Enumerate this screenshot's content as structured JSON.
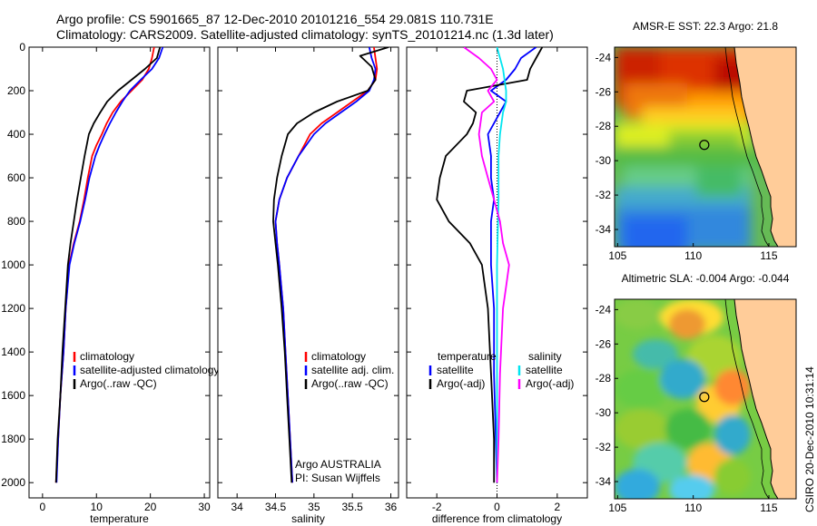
{
  "header": {
    "line1": "Argo profile: CS 5901665_87 12-Dec-2010 20101216_554 29.081S 110.731E",
    "line2": "Climatology: CARS2009. Satellite-adjusted climatology: synTS_20101214.nc (1.3d later)"
  },
  "side_text": "CSIRO 20-Dec-2010 10:31:14",
  "colors": {
    "red": "#ff0000",
    "blue": "#0000ff",
    "black": "#000000",
    "cyan": "#00e5f0",
    "magenta": "#ff00ff",
    "land": "#ffcc99"
  },
  "chart_data": [
    {
      "type": "line",
      "xlabel": "temperature",
      "xlim": [
        -2.5,
        31
      ],
      "ylim": [
        2070,
        0
      ],
      "xticks": [
        "0",
        "10",
        "20",
        "30"
      ],
      "xtickvals": [
        0,
        10,
        20,
        30
      ],
      "yticks": [
        "0",
        "200",
        "400",
        "600",
        "800",
        "1000",
        "1200",
        "1400",
        "1600",
        "1800",
        "2000"
      ],
      "legend": {
        "placement": "lower-middle",
        "entries": [
          "climatology",
          "satellite-adjusted climatology",
          "Argo(..raw -QC)"
        ]
      },
      "series": [
        {
          "name": "climatology",
          "color": "red",
          "points": [
            [
              20.7,
              0
            ],
            [
              20.3,
              50
            ],
            [
              19.7,
              100
            ],
            [
              18.5,
              150
            ],
            [
              16.5,
              200
            ],
            [
              14.5,
              250
            ],
            [
              13.0,
              300
            ],
            [
              11.9,
              350
            ],
            [
              11.0,
              400
            ],
            [
              10.0,
              450
            ],
            [
              9.2,
              500
            ],
            [
              8.4,
              600
            ],
            [
              7.7,
              700
            ],
            [
              6.9,
              800
            ],
            [
              5.8,
              900
            ],
            [
              4.9,
              1000
            ],
            [
              4.3,
              1200
            ],
            [
              3.9,
              1400
            ],
            [
              3.3,
              1600
            ],
            [
              2.9,
              1800
            ],
            [
              2.5,
              2000
            ]
          ]
        },
        {
          "name": "satellite-adjusted climatology",
          "color": "blue",
          "points": [
            [
              22.3,
              0
            ],
            [
              21.6,
              50
            ],
            [
              20.3,
              100
            ],
            [
              18.2,
              150
            ],
            [
              16.2,
              200
            ],
            [
              14.8,
              250
            ],
            [
              13.6,
              300
            ],
            [
              12.5,
              350
            ],
            [
              11.5,
              400
            ],
            [
              10.6,
              450
            ],
            [
              9.8,
              500
            ],
            [
              8.7,
              600
            ],
            [
              7.9,
              700
            ],
            [
              7.0,
              800
            ],
            [
              5.9,
              900
            ],
            [
              5.0,
              1000
            ],
            [
              4.3,
              1200
            ],
            [
              3.9,
              1400
            ],
            [
              3.3,
              1600
            ],
            [
              2.9,
              1800
            ],
            [
              2.6,
              2000
            ]
          ]
        },
        {
          "name": "Argo(..raw -QC)",
          "color": "black",
          "points": [
            [
              21.8,
              0
            ],
            [
              21.2,
              50
            ],
            [
              19.0,
              100
            ],
            [
              16.5,
              150
            ],
            [
              14.0,
              200
            ],
            [
              12.0,
              250
            ],
            [
              10.7,
              300
            ],
            [
              9.5,
              350
            ],
            [
              8.6,
              400
            ],
            [
              7.8,
              500
            ],
            [
              7.1,
              600
            ],
            [
              6.4,
              700
            ],
            [
              5.8,
              800
            ],
            [
              5.2,
              900
            ],
            [
              4.7,
              1000
            ],
            [
              4.2,
              1200
            ],
            [
              3.7,
              1400
            ],
            [
              3.3,
              1600
            ],
            [
              2.8,
              1800
            ],
            [
              2.5,
              2000
            ]
          ]
        }
      ]
    },
    {
      "type": "line",
      "xlabel": "salinity",
      "xlim": [
        33.75,
        36.1
      ],
      "ylim": [
        2070,
        0
      ],
      "xticks": [
        "34",
        "34.5",
        "35",
        "35.5",
        "36"
      ],
      "xtickvals": [
        34,
        34.5,
        35,
        35.5,
        36
      ],
      "legend": {
        "placement": "lower-right",
        "entries": [
          "climatology",
          "satellite adj. clim.",
          "Argo(..raw -QC)"
        ]
      },
      "annotations": [
        "Argo AUSTRALIA",
        "PI: Susan Wijffels"
      ],
      "series": [
        {
          "name": "climatology",
          "color": "red",
          "points": [
            [
              35.78,
              0
            ],
            [
              35.8,
              50
            ],
            [
              35.82,
              100
            ],
            [
              35.8,
              150
            ],
            [
              35.7,
              200
            ],
            [
              35.5,
              250
            ],
            [
              35.3,
              300
            ],
            [
              35.1,
              350
            ],
            [
              34.95,
              400
            ],
            [
              34.8,
              500
            ],
            [
              34.65,
              600
            ],
            [
              34.55,
              700
            ],
            [
              34.5,
              800
            ],
            [
              34.52,
              900
            ],
            [
              34.55,
              1000
            ],
            [
              34.6,
              1200
            ],
            [
              34.63,
              1400
            ],
            [
              34.66,
              1600
            ],
            [
              34.69,
              1800
            ],
            [
              34.72,
              2000
            ]
          ]
        },
        {
          "name": "satellite adj. clim.",
          "color": "blue",
          "points": [
            [
              35.72,
              0
            ],
            [
              35.75,
              50
            ],
            [
              35.8,
              100
            ],
            [
              35.78,
              150
            ],
            [
              35.72,
              200
            ],
            [
              35.55,
              250
            ],
            [
              35.35,
              300
            ],
            [
              35.15,
              350
            ],
            [
              35.0,
              400
            ],
            [
              34.8,
              500
            ],
            [
              34.65,
              600
            ],
            [
              34.55,
              700
            ],
            [
              34.5,
              800
            ],
            [
              34.52,
              900
            ],
            [
              34.55,
              1000
            ],
            [
              34.6,
              1200
            ],
            [
              34.63,
              1400
            ],
            [
              34.66,
              1600
            ],
            [
              34.69,
              1800
            ],
            [
              34.72,
              2000
            ]
          ]
        },
        {
          "name": "Argo(..raw -QC)",
          "color": "black",
          "points": [
            [
              35.97,
              0
            ],
            [
              35.6,
              40
            ],
            [
              35.75,
              90
            ],
            [
              35.8,
              150
            ],
            [
              35.7,
              200
            ],
            [
              35.3,
              250
            ],
            [
              35.0,
              300
            ],
            [
              34.78,
              350
            ],
            [
              34.66,
              400
            ],
            [
              34.58,
              500
            ],
            [
              34.52,
              600
            ],
            [
              34.48,
              700
            ],
            [
              34.47,
              800
            ],
            [
              34.5,
              900
            ],
            [
              34.53,
              1000
            ],
            [
              34.58,
              1200
            ],
            [
              34.62,
              1400
            ],
            [
              34.65,
              1600
            ],
            [
              34.68,
              1800
            ],
            [
              34.71,
              2000
            ]
          ]
        }
      ]
    },
    {
      "type": "line",
      "xlabel": "difference from climatology",
      "xlim": [
        -3.0,
        3.0
      ],
      "ylim": [
        2070,
        0
      ],
      "xticks": [
        "-2",
        "0",
        "2"
      ],
      "xtickvals": [
        -2,
        0,
        2
      ],
      "legend": {
        "placement": "lower-middle",
        "columns": [
          {
            "title": "temperature",
            "entries": [
              "satellite",
              "Argo(-adj)"
            ]
          },
          {
            "title": "salinity",
            "entries": [
              "satellite",
              "Argo(-adj)"
            ]
          }
        ]
      },
      "series": [
        {
          "name": "temperature satellite",
          "color": "blue",
          "points": [
            [
              1.3,
              0
            ],
            [
              0.8,
              50
            ],
            [
              0.6,
              100
            ],
            [
              0.3,
              150
            ],
            [
              -0.2,
              200
            ],
            [
              0.3,
              250
            ],
            [
              0.1,
              300
            ],
            [
              -0.3,
              400
            ],
            [
              -0.2,
              500
            ],
            [
              -0.2,
              600
            ],
            [
              -0.1,
              700
            ],
            [
              -0.2,
              800
            ],
            [
              -0.2,
              1000
            ],
            [
              -0.1,
              1200
            ],
            [
              -0.1,
              1500
            ],
            [
              0.0,
              2000
            ]
          ]
        },
        {
          "name": "temperature Argo(-adj)",
          "color": "black",
          "points": [
            [
              1.5,
              0
            ],
            [
              1.3,
              50
            ],
            [
              1.1,
              100
            ],
            [
              1.0,
              150
            ],
            [
              -1.0,
              200
            ],
            [
              -1.1,
              250
            ],
            [
              -0.7,
              300
            ],
            [
              -0.8,
              350
            ],
            [
              -1.0,
              400
            ],
            [
              -1.7,
              500
            ],
            [
              -1.9,
              600
            ],
            [
              -2.0,
              700
            ],
            [
              -1.6,
              800
            ],
            [
              -0.9,
              900
            ],
            [
              -0.5,
              1000
            ],
            [
              -0.3,
              1200
            ],
            [
              -0.2,
              1500
            ],
            [
              -0.1,
              1800
            ],
            [
              -0.1,
              2000
            ]
          ]
        },
        {
          "name": "salinity satellite",
          "color": "cyan",
          "points": [
            [
              0.0,
              0
            ],
            [
              0.1,
              50
            ],
            [
              0.2,
              100
            ],
            [
              0.25,
              150
            ],
            [
              0.3,
              200
            ],
            [
              0.3,
              250
            ],
            [
              0.2,
              300
            ],
            [
              0.1,
              400
            ],
            [
              0.05,
              500
            ],
            [
              0.05,
              700
            ],
            [
              0.0,
              1000
            ],
            [
              0.0,
              1500
            ],
            [
              0.0,
              2000
            ]
          ]
        },
        {
          "name": "salinity Argo(-adj)",
          "color": "magenta",
          "points": [
            [
              -1.1,
              0
            ],
            [
              -0.6,
              50
            ],
            [
              -0.2,
              100
            ],
            [
              0.0,
              150
            ],
            [
              -0.3,
              200
            ],
            [
              -0.1,
              250
            ],
            [
              -0.5,
              300
            ],
            [
              -0.6,
              400
            ],
            [
              -0.5,
              500
            ],
            [
              -0.3,
              600
            ],
            [
              -0.1,
              700
            ],
            [
              0.1,
              800
            ],
            [
              0.2,
              900
            ],
            [
              0.4,
              1000
            ],
            [
              0.3,
              1100
            ],
            [
              0.2,
              1200
            ],
            [
              0.1,
              1500
            ],
            [
              0.05,
              1800
            ],
            [
              0.0,
              2000
            ]
          ]
        }
      ]
    },
    {
      "type": "heatmap",
      "title": "AMSR-E SST: 22.3 Argo: 21.8",
      "xlim": [
        104.8,
        116.8
      ],
      "ylim": [
        -35,
        -23.4
      ],
      "xticks": [
        "105",
        "110",
        "115"
      ],
      "xtickvals": [
        105,
        110,
        115
      ],
      "yticks": [
        "-24",
        "-26",
        "-28",
        "-30",
        "-32",
        "-34"
      ],
      "ytickvals": [
        -24,
        -26,
        -28,
        -30,
        -32,
        -34
      ],
      "marker": {
        "lon": 110.731,
        "lat": -29.081
      }
    },
    {
      "type": "heatmap",
      "title": "Altimetric SLA: -0.004 Argo: -0.044",
      "xlim": [
        104.8,
        116.8
      ],
      "ylim": [
        -35,
        -23.4
      ],
      "xticks": [
        "105",
        "110",
        "115"
      ],
      "xtickvals": [
        105,
        110,
        115
      ],
      "yticks": [
        "-24",
        "-26",
        "-28",
        "-30",
        "-32",
        "-34"
      ],
      "ytickvals": [
        -24,
        -26,
        -28,
        -30,
        -32,
        -34
      ],
      "marker": {
        "lon": 110.731,
        "lat": -29.081
      }
    }
  ]
}
